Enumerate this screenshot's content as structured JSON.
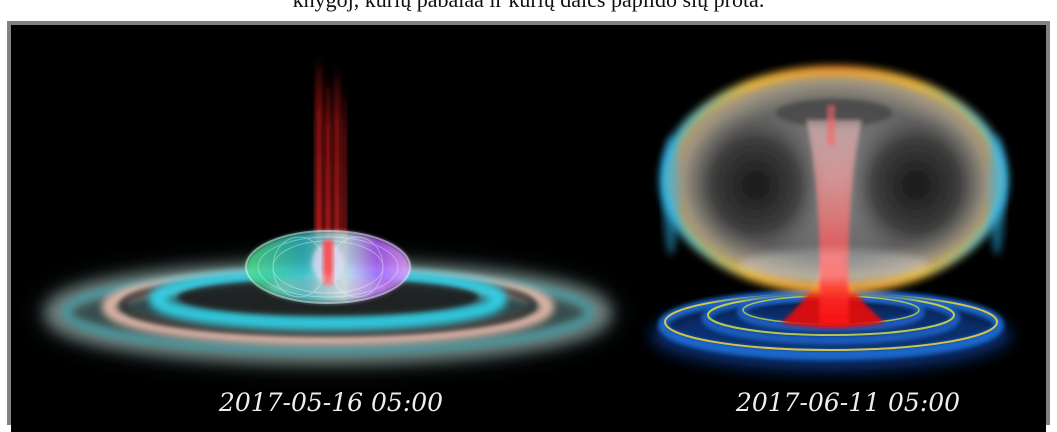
{
  "caption": "knygoj, kurių pabaiaa ir kurių dalčs papildo šių prota.",
  "panels": [
    {
      "timestamp": "2017-05-16 05:00",
      "subject": "torus with cyan and pink rings and red jet"
    },
    {
      "timestamp": "2017-06-11 05:00",
      "subject": "large translucent torus over blue rings with red funnel"
    }
  ],
  "colors": {
    "frame": "#7f8286",
    "background": "#000000",
    "timestamp_text": "#eeeeee"
  }
}
